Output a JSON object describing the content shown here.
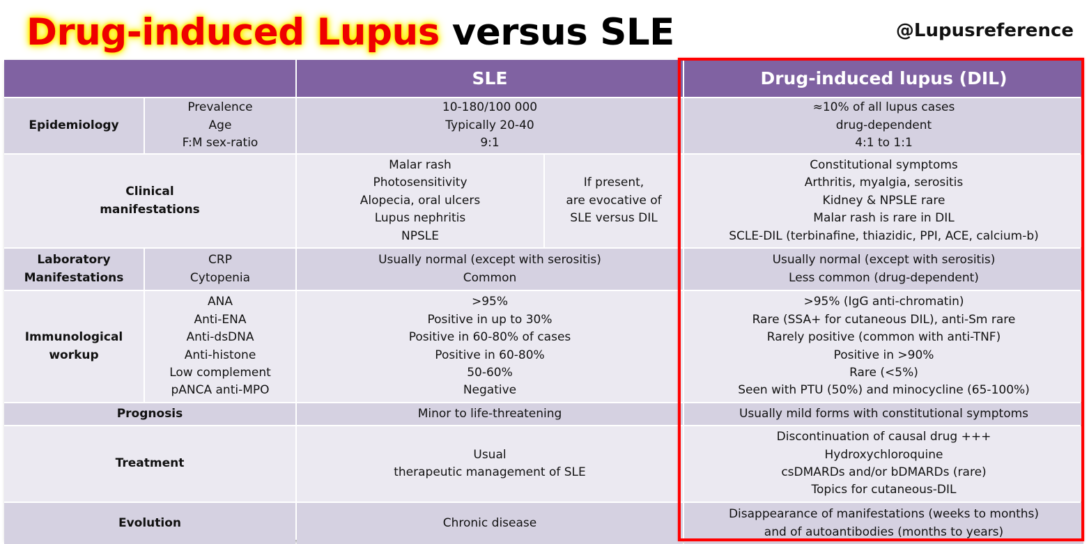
{
  "title": {
    "part1": "Drug-induced Lupus",
    "part2": "versus SLE"
  },
  "handle": "@Lupusreference",
  "headers": {
    "sle": "SLE",
    "dil": "Drug-induced lupus (DIL)"
  },
  "rows": {
    "epidemiology": {
      "label": "Epidemiology",
      "params": "Prevalence\nAge\nF:M sex-ratio",
      "sle": "10-180/100 000\nTypically 20-40\n9:1",
      "dil": "≈10% of all lupus cases\ndrug-dependent\n4:1 to 1:1"
    },
    "clinical": {
      "label": "Clinical\nmanifestations",
      "sle": "Malar rash\nPhotosensitivity\nAlopecia, oral ulcers\nLupus nephritis\nNPSLE",
      "note": "If present,\nare evocative of\nSLE versus DIL",
      "dil": "Constitutional symptoms\nArthritis, myalgia, serositis\nKidney & NPSLE rare\nMalar rash is rare in DIL\nSCLE-DIL  (terbinafine, thiazidic, PPI, ACE, calcium-b)"
    },
    "laboratory": {
      "label": "Laboratory\nManifestations",
      "params": "CRP\nCytopenia",
      "sle": "Usually normal (except with serositis)\nCommon",
      "dil": "Usually normal (except with serositis)\nLess common (drug-dependent)"
    },
    "immunological": {
      "label": "Immunological\nworkup",
      "params": "ANA\nAnti-ENA\nAnti-dsDNA\nAnti-histone\nLow complement\npANCA anti-MPO",
      "sle": ">95%\nPositive in up to 30%\nPositive in 60-80% of cases\nPositive in 60-80%\n50-60%\nNegative",
      "dil": ">95% (IgG anti-chromatin)\nRare (SSA+ for cutaneous DIL), anti-Sm rare\nRarely positive (common with anti-TNF)\nPositive in >90%\nRare (<5%)\nSeen with PTU (50%) and minocycline (65-100%)"
    },
    "prognosis": {
      "label": "Prognosis",
      "sle": "Minor to life-threatening",
      "dil": "Usually mild forms with constitutional symptoms"
    },
    "treatment": {
      "label": "Treatment",
      "sle": "Usual\ntherapeutic management of SLE",
      "dil": "Discontinuation of causal drug +++\nHydroxychloroquine\ncsDMARDs and/or bDMARDs (rare)\nTopics for cutaneous-DIL"
    },
    "evolution": {
      "label": "Evolution",
      "sle": "Chronic disease",
      "dil": "Disappearance of manifestations (weeks to months)\nand of autoantibodies (months to years)"
    }
  },
  "colors": {
    "header": "#8062a2",
    "row_dark": "#d5d1e1",
    "row_light": "#ebe9f1",
    "highlight_border": "#ff0000",
    "title_red": "#ee0000",
    "title_glow": "#ffee00"
  }
}
